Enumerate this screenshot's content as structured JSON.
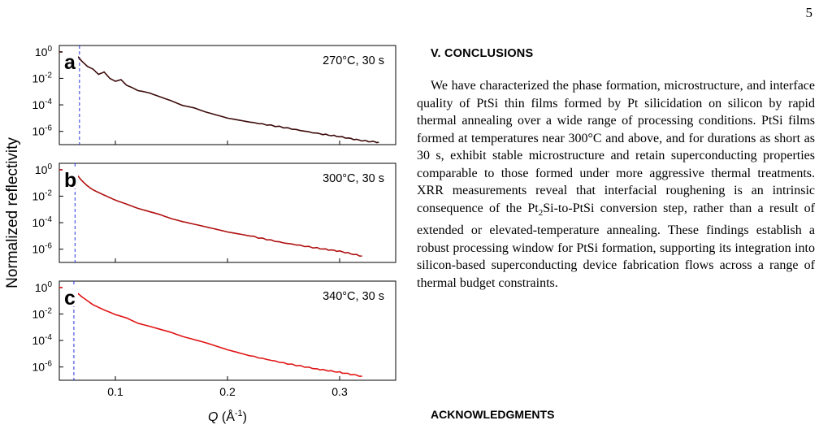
{
  "page": {
    "number": "5"
  },
  "figure": {
    "ylabel": "Normalized reflectivity",
    "xlabel_q": "Q",
    "xlabel_unit": "(Å",
    "xlabel_exp": "-1",
    "xlabel_close": ")",
    "panels": [
      {
        "letter": "a",
        "label": "270°C, 30 s",
        "color": "#3d0a0a",
        "critical_q": 0.068
      },
      {
        "letter": "b",
        "label": "300°C, 30 s",
        "color": "#b01010",
        "critical_q": 0.064
      },
      {
        "letter": "c",
        "label": "340°C, 30 s",
        "color": "#e01515",
        "critical_q": 0.063
      }
    ]
  },
  "chart_data": [
    {
      "type": "line",
      "title": "270°C, 30 s",
      "panel": "a",
      "xlabel": "Q (Å-1)",
      "ylabel": "Normalized reflectivity",
      "yscale": "log",
      "xlim": [
        0.05,
        0.35
      ],
      "ylim": [
        1e-07,
        3
      ],
      "xticks": [
        0.1,
        0.2,
        0.3
      ],
      "yticks": [
        "10^0",
        "10^-2",
        "10^-4",
        "10^-6"
      ],
      "critical_edge_q": 0.068,
      "x": [
        0.05,
        0.06,
        0.065,
        0.07,
        0.075,
        0.08,
        0.085,
        0.09,
        0.095,
        0.1,
        0.105,
        0.11,
        0.115,
        0.12,
        0.125,
        0.13,
        0.14,
        0.15,
        0.16,
        0.17,
        0.18,
        0.2,
        0.22,
        0.25,
        0.28,
        0.3,
        0.32,
        0.335
      ],
      "y": [
        1,
        0.9,
        0.6,
        0.2,
        0.08,
        0.05,
        0.02,
        0.03,
        0.01,
        0.006,
        0.008,
        0.003,
        0.002,
        0.0012,
        0.001,
        0.0008,
        0.0004,
        0.0002,
        9e-05,
        6e-05,
        3e-05,
        1e-05,
        5e-06,
        2e-06,
        7e-07,
        4e-07,
        2e-07,
        1.5e-07
      ]
    },
    {
      "type": "line",
      "title": "300°C, 30 s",
      "panel": "b",
      "xlabel": "Q (Å-1)",
      "ylabel": "Normalized reflectivity",
      "yscale": "log",
      "xlim": [
        0.05,
        0.35
      ],
      "ylim": [
        1e-07,
        3
      ],
      "xticks": [
        0.1,
        0.2,
        0.3
      ],
      "yticks": [
        "10^0",
        "10^-2",
        "10^-4",
        "10^-6"
      ],
      "critical_edge_q": 0.064,
      "x": [
        0.05,
        0.06,
        0.064,
        0.07,
        0.075,
        0.08,
        0.09,
        0.1,
        0.11,
        0.12,
        0.13,
        0.14,
        0.15,
        0.16,
        0.18,
        0.2,
        0.22,
        0.25,
        0.28,
        0.3,
        0.32
      ],
      "y": [
        1,
        0.9,
        0.6,
        0.15,
        0.06,
        0.03,
        0.012,
        0.005,
        0.0025,
        0.0012,
        0.0007,
        0.0004,
        0.0002,
        0.00012,
        5e-05,
        2e-05,
        1e-05,
        3e-06,
        1.2e-06,
        7e-07,
        3e-07
      ]
    },
    {
      "type": "line",
      "title": "340°C, 30 s",
      "panel": "c",
      "xlabel": "Q (Å-1)",
      "ylabel": "Normalized reflectivity",
      "yscale": "log",
      "xlim": [
        0.05,
        0.35
      ],
      "ylim": [
        1e-07,
        3
      ],
      "xticks": [
        0.1,
        0.2,
        0.3
      ],
      "yticks": [
        "10^0",
        "10^-2",
        "10^-4",
        "10^-6"
      ],
      "critical_edge_q": 0.063,
      "x": [
        0.05,
        0.06,
        0.063,
        0.07,
        0.08,
        0.09,
        0.1,
        0.11,
        0.12,
        0.13,
        0.14,
        0.15,
        0.16,
        0.18,
        0.2,
        0.22,
        0.25,
        0.28,
        0.3,
        0.32
      ],
      "y": [
        1,
        0.9,
        0.65,
        0.2,
        0.05,
        0.02,
        0.009,
        0.005,
        0.002,
        0.0012,
        0.0007,
        0.0004,
        0.0002,
        7e-05,
        2e-05,
        7e-06,
        2e-06,
        7e-07,
        4e-07,
        2e-07
      ]
    }
  ],
  "conclusions": {
    "heading": "V.   CONCLUSIONS",
    "p1": "We have characterized the phase formation, microstructure, and interface quality of PtSi thin films formed by Pt silicidation on silicon by rapid thermal annealing over a wide range of processing conditions. PtSi films formed at temperatures near 300°C and above, and for durations as short as 30 s, exhibit stable microstructure and retain superconducting properties comparable to those formed under more aggressive thermal treatments. XRR measurements reveal that interfacial roughening is an intrinsic consequence of the ",
    "chem_a": "Pt",
    "chem_sub": "2",
    "p2": "Si-to-PtSi conversion step, rather than a result of extended or elevated-temperature annealing. These findings establish a robust processing window for PtSi formation, supporting its integration into silicon-based superconducting device fabrication flows across a range of thermal budget constraints."
  },
  "acknowledgments": {
    "heading": "ACKNOWLEDGMENTS"
  }
}
